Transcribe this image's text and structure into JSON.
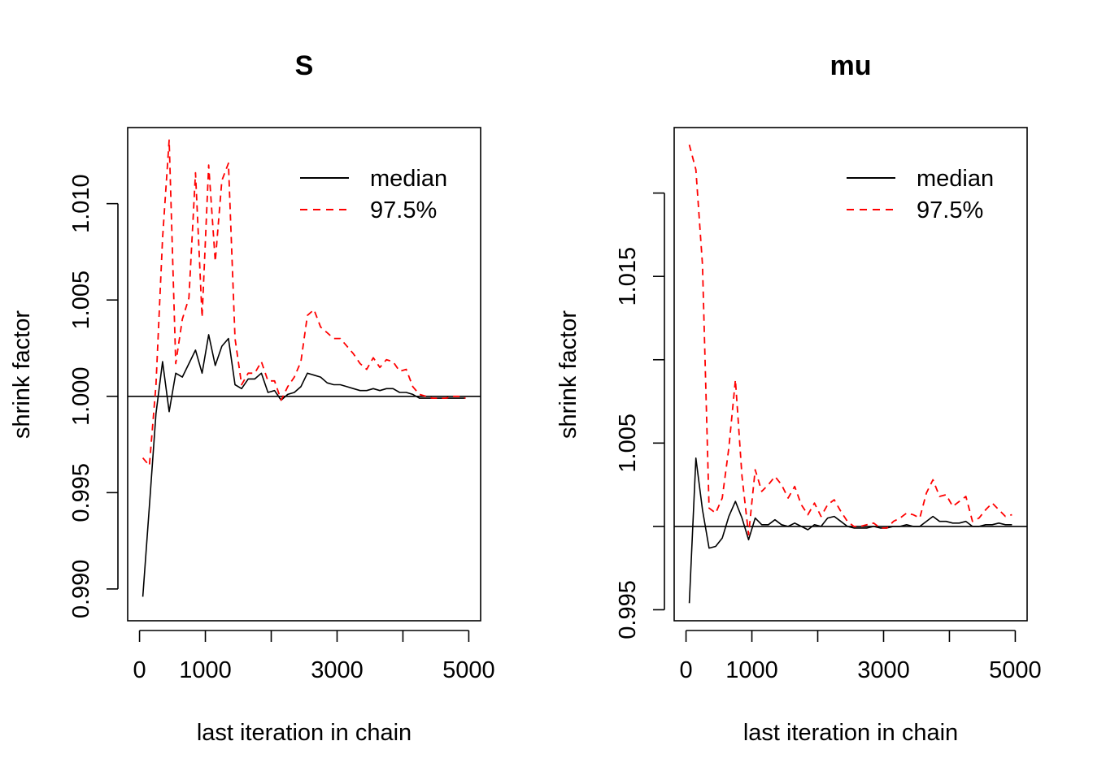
{
  "colors": {
    "median": "#000000",
    "q975": "#ff0000",
    "reference": "#000000"
  },
  "chart_data": [
    {
      "type": "line",
      "title": "S",
      "xlabel": "last iteration in chain",
      "ylabel": "shrink factor",
      "xlim": [
        -180,
        5180
      ],
      "ylim": [
        0.98835,
        1.01395
      ],
      "xticks": [
        0,
        1000,
        2000,
        3000,
        4000,
        5000
      ],
      "xtick_labels": [
        "0",
        "1000",
        "",
        "3000",
        "",
        "5000"
      ],
      "yticks": [
        0.99,
        0.995,
        1.0,
        1.005,
        1.01
      ],
      "ytick_labels": [
        "0.990",
        "0.995",
        "1.000",
        "1.005",
        "1.010"
      ],
      "reference_line": 1.0,
      "legend": {
        "position": "top-right",
        "entries": [
          "median",
          "97.5%"
        ]
      },
      "x": [
        50,
        150,
        250,
        350,
        450,
        550,
        650,
        750,
        850,
        950,
        1050,
        1150,
        1250,
        1350,
        1450,
        1550,
        1650,
        1750,
        1850,
        1950,
        2050,
        2150,
        2250,
        2350,
        2450,
        2550,
        2650,
        2750,
        2850,
        2950,
        3050,
        3150,
        3250,
        3350,
        3450,
        3550,
        3650,
        3750,
        3850,
        3950,
        4050,
        4150,
        4250,
        4350,
        4450,
        4550,
        4650,
        4750,
        4850,
        4950
      ],
      "series": [
        {
          "name": "median",
          "values": [
            0.9896,
            0.9943,
            0.9991,
            1.0018,
            0.9992,
            1.0012,
            1.001,
            1.0017,
            1.0024,
            1.0012,
            1.0032,
            1.0016,
            1.0026,
            1.003,
            1.0006,
            1.0004,
            1.0009,
            1.0009,
            1.0012,
            1.0002,
            1.0003,
            0.9998,
            1.0001,
            1.0002,
            1.0005,
            1.0012,
            1.0011,
            1.001,
            1.0007,
            1.0006,
            1.0006,
            1.0005,
            1.0004,
            1.0003,
            1.0003,
            1.0004,
            1.0003,
            1.0004,
            1.0004,
            1.0002,
            1.0002,
            1.0001,
            0.9999,
            0.9999,
            0.9999,
            0.9999,
            0.9999,
            0.9999,
            0.9999,
            0.9999
          ]
        },
        {
          "name": "97.5%",
          "values": [
            0.9968,
            0.9964,
            1.0006,
            1.0082,
            1.0133,
            1.0017,
            1.004,
            1.0051,
            1.0116,
            1.0041,
            1.012,
            1.007,
            1.0112,
            1.0121,
            1.003,
            1.0006,
            1.0012,
            1.0012,
            1.0018,
            1.0008,
            1.0008,
            0.9998,
            1.0005,
            1.001,
            1.0018,
            1.0042,
            1.0045,
            1.0036,
            1.0033,
            1.003,
            1.003,
            1.0026,
            1.0022,
            1.0017,
            1.0014,
            1.002,
            1.0015,
            1.0019,
            1.0018,
            1.0013,
            1.0014,
            1.0005,
            1.0001,
            1.0,
            0.9999,
            0.9999,
            0.9999,
            1.0,
            1.0,
            0.9999
          ]
        }
      ]
    },
    {
      "type": "line",
      "title": "mu",
      "xlabel": "last iteration in chain",
      "ylabel": "shrink factor",
      "xlim": [
        -180,
        5180
      ],
      "ylim": [
        0.99434,
        1.02393
      ],
      "xticks": [
        0,
        1000,
        2000,
        3000,
        4000,
        5000
      ],
      "xtick_labels": [
        "0",
        "1000",
        "",
        "3000",
        "",
        "5000"
      ],
      "yticks": [
        0.995,
        1.0,
        1.005,
        1.01,
        1.015,
        1.02
      ],
      "ytick_labels": [
        "0.995",
        "",
        "1.005",
        "",
        "1.015",
        ""
      ],
      "reference_line": 1.0,
      "legend": {
        "position": "top-right",
        "entries": [
          "median",
          "97.5%"
        ]
      },
      "x": [
        50,
        150,
        250,
        350,
        450,
        550,
        650,
        750,
        850,
        950,
        1050,
        1150,
        1250,
        1350,
        1450,
        1550,
        1650,
        1750,
        1850,
        1950,
        2050,
        2150,
        2250,
        2350,
        2450,
        2550,
        2650,
        2750,
        2850,
        2950,
        3050,
        3150,
        3250,
        3350,
        3450,
        3550,
        3650,
        3750,
        3850,
        3950,
        4050,
        4150,
        4250,
        4350,
        4450,
        4550,
        4650,
        4750,
        4850,
        4950
      ],
      "series": [
        {
          "name": "median",
          "values": [
            0.9954,
            1.0041,
            1.001,
            0.9987,
            0.9988,
            0.9993,
            1.0006,
            1.0015,
            1.0005,
            0.9992,
            1.0005,
            1.0001,
            1.0001,
            1.0004,
            1.0001,
            1.0,
            1.0002,
            1.0,
            0.9998,
            1.0001,
            1.0,
            1.0005,
            1.0006,
            1.0003,
            1.0,
            0.9999,
            0.9999,
            0.9999,
            1.0,
            0.9999,
            0.9999,
            1.0,
            1.0,
            1.0001,
            1.0,
            1.0,
            1.0003,
            1.0006,
            1.0003,
            1.0003,
            1.0002,
            1.0002,
            1.0003,
            1.0,
            1.0,
            1.0001,
            1.0001,
            1.0002,
            1.0001,
            1.0001
          ]
        },
        {
          "name": "97.5%",
          "values": [
            1.0229,
            1.0214,
            1.0157,
            1.0011,
            1.0008,
            1.0017,
            1.0047,
            1.0088,
            1.003,
            0.9995,
            1.0034,
            1.0021,
            1.0025,
            1.003,
            1.0025,
            1.0017,
            1.0024,
            1.0013,
            1.0007,
            1.0014,
            1.0006,
            1.0013,
            1.0016,
            1.0009,
            1.0003,
            1.0,
            1.0,
            1.0001,
            1.0002,
            0.9999,
            0.9999,
            1.0003,
            1.0005,
            1.0008,
            1.0007,
            1.0005,
            1.002,
            1.0028,
            1.0018,
            1.0019,
            1.0012,
            1.0015,
            1.0018,
            1.0003,
            1.0005,
            1.001,
            1.0014,
            1.001,
            1.0006,
            1.0007
          ]
        }
      ]
    }
  ]
}
